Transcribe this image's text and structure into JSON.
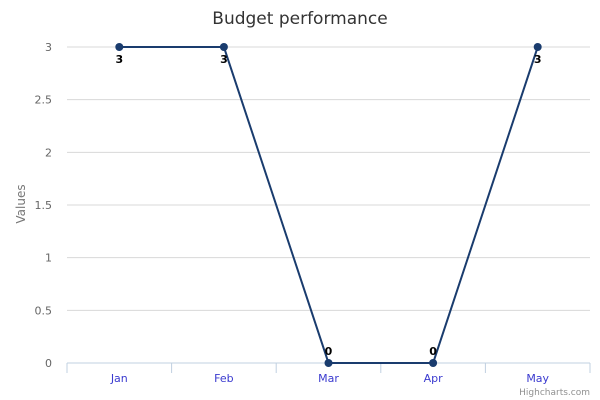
{
  "chart_data": {
    "type": "line",
    "title": "Budget performance",
    "xlabel": "",
    "ylabel": "Values",
    "categories": [
      "Jan",
      "Feb",
      "Mar",
      "Apr",
      "May"
    ],
    "series": [
      {
        "values": [
          3,
          3,
          0,
          0,
          3
        ],
        "color": "#1a3c6e"
      }
    ],
    "ylim": [
      0,
      3
    ],
    "yticks": [
      "0",
      "0.5",
      "1",
      "1.5",
      "2",
      "2.5",
      "3"
    ],
    "data_labels": [
      "3",
      "3",
      "0",
      "0",
      "3"
    ],
    "grid": true,
    "legend": "none"
  },
  "credit": "Highcharts.com"
}
